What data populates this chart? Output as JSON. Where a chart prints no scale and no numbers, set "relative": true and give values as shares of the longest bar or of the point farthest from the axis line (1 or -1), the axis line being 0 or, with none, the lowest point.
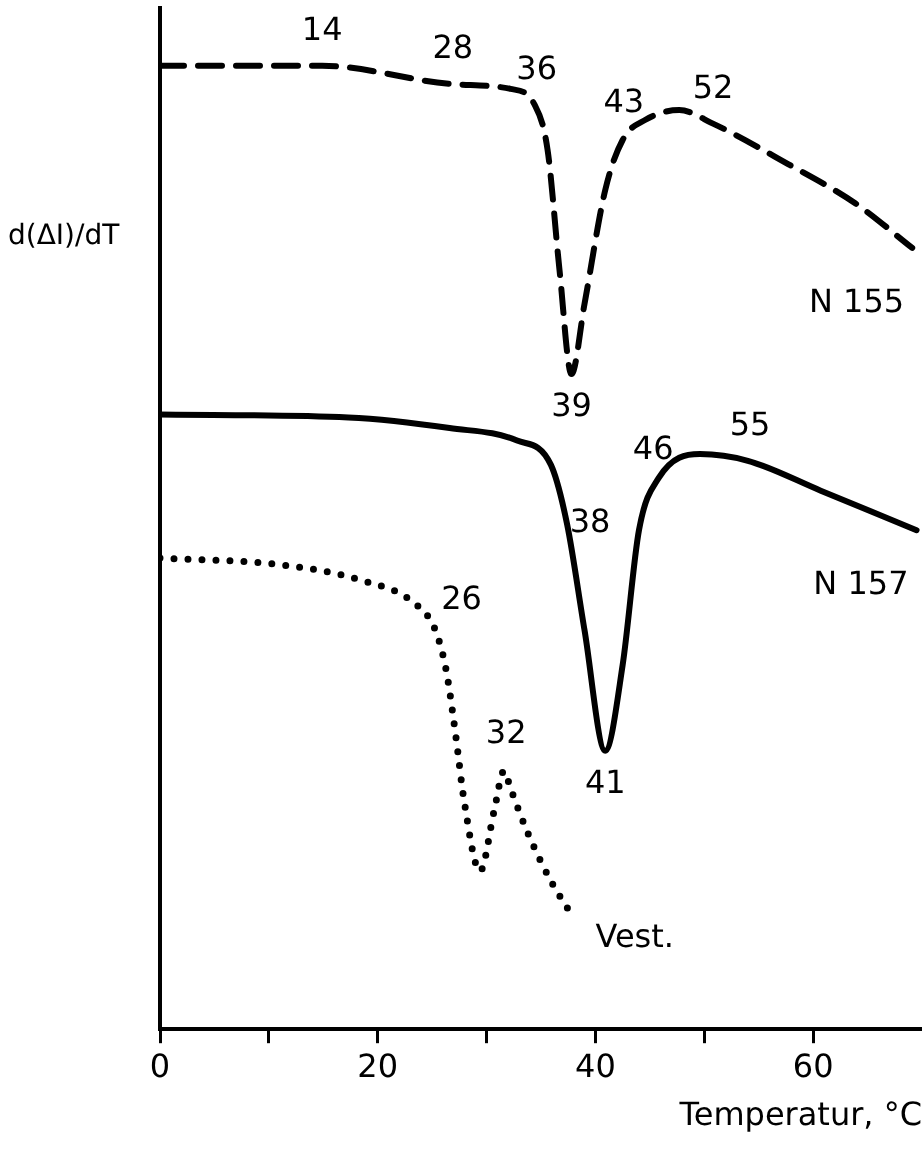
{
  "chart_data": {
    "type": "line",
    "relative": true,
    "xlabel": "Temperatur, °C",
    "ylabel": "d(ΔI)/dT",
    "xlim": [
      0,
      70
    ],
    "xticks": [
      0,
      {
        "value": 10,
        "label": null
      },
      20,
      {
        "value": 30,
        "label": null
      },
      40,
      {
        "value": 50,
        "label": null
      },
      60
    ],
    "grid": false,
    "legend": false,
    "marker": "none",
    "series": [
      {
        "name": "N 155",
        "color": "#000000",
        "line_style": "dashed",
        "x": [
          0,
          14.9,
          26.9,
          32.2,
          34.4,
          35.6,
          36.7,
          37.8,
          39.0,
          40.9,
          42.5,
          44.6,
          47.7,
          50.8,
          57.7,
          63.9,
          69.1
        ],
        "values": [
          1.0,
          1.0,
          0.981,
          0.976,
          0.96,
          0.913,
          0.788,
          0.68,
          0.753,
          0.871,
          0.923,
          0.944,
          0.954,
          0.94,
          0.898,
          0.857,
          0.811
        ]
      },
      {
        "name": "N 157",
        "color": "#000000",
        "line_style": "solid",
        "x": [
          0,
          17.3,
          26.6,
          32.8,
          35.9,
          37.4,
          39.0,
          40.9,
          42.5,
          44.0,
          45.8,
          49.6,
          54.0,
          60.7,
          69.5
        ],
        "values": [
          0.638,
          0.635,
          0.624,
          0.611,
          0.586,
          0.524,
          0.414,
          0.289,
          0.378,
          0.518,
          0.572,
          0.597,
          0.59,
          0.559,
          0.518
        ]
      },
      {
        "name": "Vest.",
        "color": "#000000",
        "line_style": "dotted",
        "x": [
          0,
          11.1,
          18.5,
          23.5,
          25.3,
          26.3,
          27.2,
          27.9,
          29.4,
          30.7,
          31.6,
          32.2,
          33.7,
          35.9,
          37.8
        ],
        "values": [
          0.489,
          0.482,
          0.466,
          0.441,
          0.414,
          0.372,
          0.302,
          0.24,
          0.164,
          0.227,
          0.268,
          0.25,
          0.206,
          0.154,
          0.119
        ]
      }
    ],
    "annotations": [
      {
        "text": "14",
        "x": 14.9,
        "y": 1.0
      },
      {
        "text": "28",
        "x": 26.9,
        "y": 0.981
      },
      {
        "text": "36",
        "x": 34.6,
        "y": 0.96
      },
      {
        "text": "43",
        "x": 42.6,
        "y": 0.925
      },
      {
        "text": "52",
        "x": 50.8,
        "y": 0.94
      },
      {
        "text": "39",
        "x": 37.8,
        "y": 0.68
      },
      {
        "text": "38",
        "x": 36.9,
        "y": 0.56
      },
      {
        "text": "46",
        "x": 45.3,
        "y": 0.565
      },
      {
        "text": "55",
        "x": 54.2,
        "y": 0.59
      },
      {
        "text": "41",
        "x": 40.9,
        "y": 0.289
      },
      {
        "text": "26",
        "x": 25.1,
        "y": 0.41
      },
      {
        "text": "32",
        "x": 31.8,
        "y": 0.27
      }
    ]
  }
}
